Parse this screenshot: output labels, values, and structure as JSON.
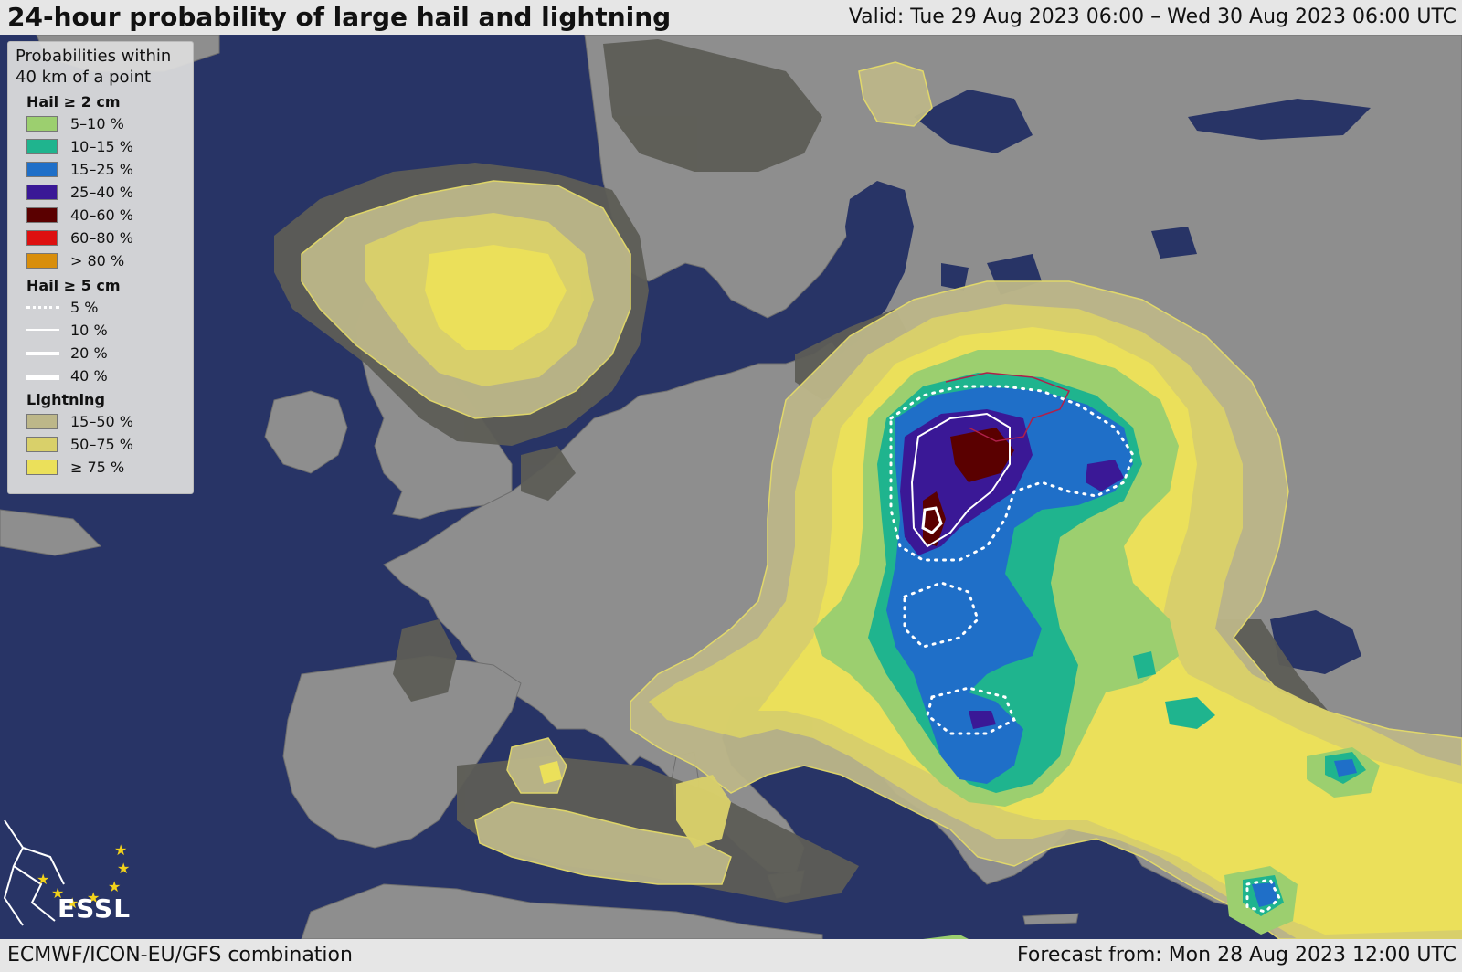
{
  "header": {
    "title": "24-hour probability of large hail and lightning",
    "valid": "Valid: Tue 29 Aug 2023 06:00 – Wed 30 Aug 2023 06:00 UTC"
  },
  "footer": {
    "model": "ECMWF/ICON-EU/GFS combination",
    "forecast": "Forecast from: Mon 28 Aug 2023 12:00 UTC"
  },
  "legend": {
    "intro_line1": "Probabilities within",
    "intro_line2": "40 km of a point",
    "hail2_title": "Hail ≥ 2 cm",
    "hail2": [
      {
        "label": "5–10 %",
        "color": "#9ccf6f"
      },
      {
        "label": "10–15 %",
        "color": "#1fb48e"
      },
      {
        "label": "15–25 %",
        "color": "#1f6fc8"
      },
      {
        "label": "25–40 %",
        "color": "#3a1896"
      },
      {
        "label": "40–60 %",
        "color": "#5a0000"
      },
      {
        "label": "60–80 %",
        "color": "#dd1010"
      },
      {
        "label": "> 80 %",
        "color": "#d98e0b"
      }
    ],
    "hail5_title": "Hail ≥ 5 cm",
    "hail5": [
      {
        "label": "5 %",
        "style": "dotted"
      },
      {
        "label": "10 %",
        "style": "thin"
      },
      {
        "label": "20 %",
        "style": "medium"
      },
      {
        "label": "40 %",
        "style": "thick"
      }
    ],
    "lightning_title": "Lightning",
    "lightning": [
      {
        "label": "15–50 %",
        "color": "#bdb789"
      },
      {
        "label": "50–75 %",
        "color": "#d9d06a"
      },
      {
        "label": "≥ 75 %",
        "color": "#ebe05a"
      }
    ]
  },
  "logo": {
    "text": "ESSL"
  },
  "colors": {
    "sea": "#283466",
    "land": "#8e8e8e",
    "dry_area": "#5d5d56",
    "lightning_low": "#bdb789",
    "lightning_mid": "#d9d06a",
    "lightning_high": "#ebe05a",
    "hail_5_10": "#9ccf6f",
    "hail_10_15": "#1fb48e",
    "hail_15_25": "#1f6fc8",
    "hail_25_40": "#3a1896",
    "hail_40_60": "#5a0000"
  }
}
